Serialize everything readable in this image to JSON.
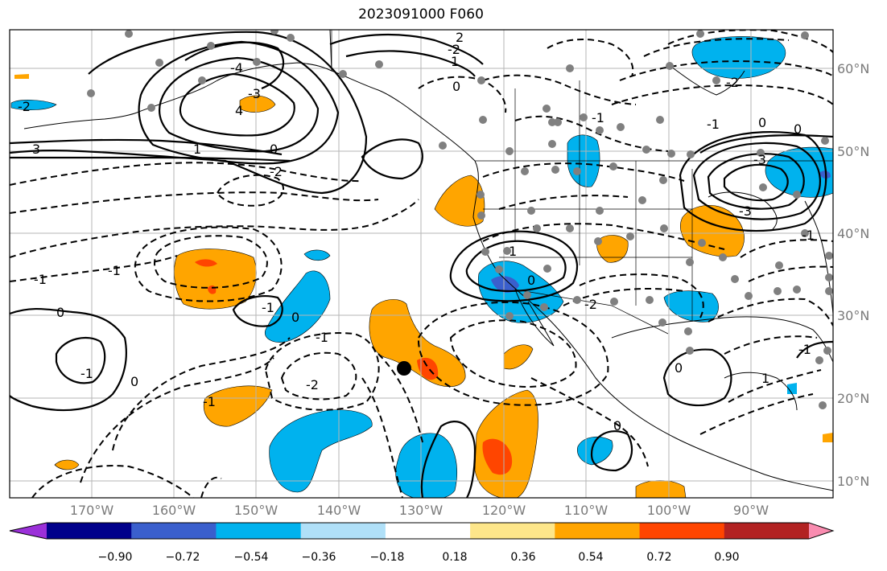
{
  "title": "2023091000 F060",
  "map": {
    "lon_labels": [
      "170°W",
      "160°W",
      "150°W",
      "140°W",
      "130°W",
      "120°W",
      "110°W",
      "100°W",
      "90°W"
    ],
    "lat_labels": [
      "60°N",
      "50°N",
      "40°N",
      "30°N",
      "20°N",
      "10°N"
    ],
    "contour_labels": [
      "-2",
      "2",
      "1",
      "0",
      "-4",
      "-3",
      "3",
      "4",
      "-2",
      "1",
      "0",
      "-2",
      "-1",
      "-1",
      "0",
      "-1",
      "-1",
      "0",
      "-1",
      "-2",
      "0",
      "-1",
      "1",
      "-2",
      "0",
      "-1",
      "-1",
      "-3",
      "-3",
      "0",
      "0",
      "-1",
      "-2",
      "-1",
      "1",
      "0",
      "0"
    ]
  },
  "colorbar": {
    "ticks": [
      "−0.90",
      "−0.72",
      "−0.54",
      "−0.36",
      "−0.18",
      "0.18",
      "0.36",
      "0.54",
      "0.72",
      "0.90"
    ],
    "colors": [
      "#9b30d9",
      "#00008b",
      "#3a5fcd",
      "#00b2ee",
      "#b0e0f8",
      "#ffffff",
      "#fde68a",
      "#ffa500",
      "#ff4500",
      "#b22222",
      "#f98cb0"
    ]
  }
}
